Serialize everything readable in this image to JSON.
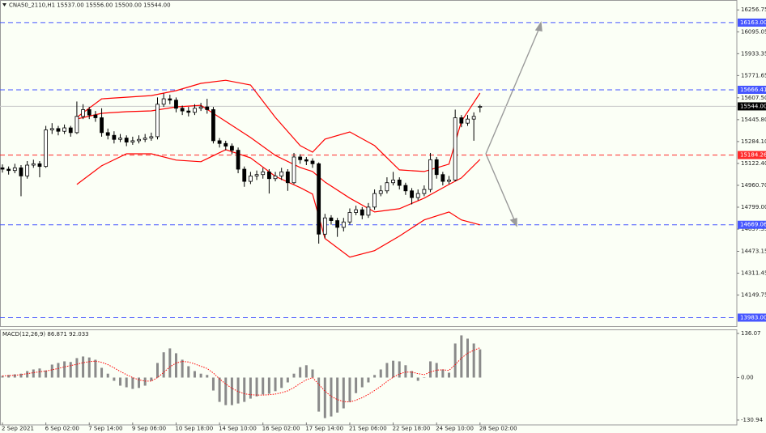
{
  "chart_data": [
    {
      "type": "candlestick",
      "title": "CNA50_2110,H1  15537.00 15556.00 15500.00 15544.00",
      "categories": [
        "2 Sep 2021",
        null,
        null,
        null,
        null,
        null,
        null,
        "6 Sep 02:00",
        null,
        null,
        null,
        null,
        null,
        null,
        "7 Sep 14:00",
        null,
        null,
        null,
        null,
        null,
        null,
        "9 Sep 06:00",
        null,
        null,
        null,
        null,
        null,
        null,
        "10 Sep 18:00",
        null,
        null,
        null,
        null,
        null,
        null,
        "14 Sep 10:00",
        null,
        null,
        null,
        null,
        null,
        null,
        "16 Sep 02:00",
        null,
        null,
        null,
        null,
        null,
        null,
        "17 Sep 14:00",
        null,
        null,
        null,
        null,
        null,
        null,
        "21 Sep 06:00",
        null,
        null,
        null,
        null,
        null,
        null,
        "22 Sep 18:00",
        null,
        null,
        null,
        null,
        null,
        null,
        "24 Sep 10:00",
        null,
        null,
        null,
        null,
        null,
        null,
        "28 Sep 02:00"
      ],
      "open": [
        15090,
        15080,
        15070,
        15090,
        15030,
        15110,
        15120,
        15100,
        15370,
        15380,
        15360,
        15385,
        15350,
        15470,
        15520,
        15480,
        15460,
        15350,
        15330,
        15300,
        15310,
        15280,
        15290,
        15300,
        15310,
        15320,
        15560,
        15600,
        15590,
        15530,
        15510,
        15500,
        15530,
        15540,
        15520,
        15290,
        15270,
        15250,
        15220,
        15080,
        14990,
        15030,
        15040,
        15060,
        15010,
        15030,
        15060,
        14980,
        15170,
        15150,
        15140,
        15120,
        14600,
        14720,
        14700,
        14650,
        14690,
        14760,
        14780,
        14740,
        14800,
        14900,
        14920,
        14980,
        15000,
        14960,
        14920,
        14870,
        14900,
        14930,
        15150,
        15040,
        14990,
        15000,
        15460,
        15420,
        15450,
        15537
      ],
      "high": [
        15115,
        15100,
        15120,
        15110,
        15140,
        15150,
        15140,
        15400,
        15420,
        15400,
        15410,
        15400,
        15580,
        15560,
        15540,
        15510,
        15530,
        15380,
        15360,
        15340,
        15330,
        15320,
        15330,
        15340,
        15350,
        15610,
        15640,
        15630,
        15610,
        15550,
        15540,
        15560,
        15570,
        15600,
        15540,
        15310,
        15290,
        15270,
        15240,
        15100,
        15060,
        15070,
        15090,
        15080,
        15060,
        15090,
        15080,
        15200,
        15190,
        15170,
        15160,
        15130,
        14750,
        14740,
        14720,
        14720,
        14790,
        14810,
        14800,
        14830,
        14930,
        14960,
        15020,
        15060,
        15020,
        14980,
        14940,
        14930,
        14960,
        15200,
        15170,
        15060,
        15030,
        15520,
        15480,
        15480,
        15500,
        15556
      ],
      "low": [
        15055,
        15040,
        15050,
        14880,
        15010,
        15090,
        15020,
        15090,
        15340,
        15330,
        15340,
        15320,
        15340,
        15450,
        15450,
        15430,
        15320,
        15300,
        15270,
        15280,
        15250,
        15260,
        15270,
        15280,
        15290,
        15300,
        15540,
        15560,
        15500,
        15480,
        15470,
        15480,
        15510,
        15490,
        15270,
        15240,
        15220,
        15190,
        15050,
        14950,
        14970,
        15000,
        15010,
        14900,
        14990,
        15000,
        14920,
        14970,
        15120,
        15110,
        15090,
        14530,
        14570,
        14670,
        14580,
        14620,
        14670,
        14740,
        14710,
        14720,
        14780,
        14880,
        14900,
        14960,
        14930,
        14890,
        14820,
        14850,
        14880,
        14910,
        15010,
        14960,
        14970,
        14990,
        15390,
        15400,
        15290,
        15500
      ],
      "close": [
        15080,
        15070,
        15090,
        15030,
        15110,
        15120,
        15100,
        15370,
        15380,
        15360,
        15385,
        15350,
        15470,
        15520,
        15480,
        15460,
        15350,
        15330,
        15300,
        15310,
        15280,
        15290,
        15300,
        15310,
        15320,
        15560,
        15600,
        15590,
        15530,
        15510,
        15500,
        15530,
        15540,
        15520,
        15290,
        15270,
        15250,
        15220,
        15080,
        14990,
        15030,
        15040,
        15060,
        15010,
        15030,
        15060,
        14980,
        15170,
        15150,
        15140,
        15120,
        14600,
        14720,
        14700,
        14650,
        14690,
        14760,
        14780,
        14740,
        14800,
        14900,
        14920,
        14980,
        15000,
        14960,
        14920,
        14870,
        14900,
        14930,
        15150,
        15040,
        14990,
        15000,
        15460,
        15420,
        15450,
        15470,
        15544
      ],
      "up_color": "#ffffff",
      "down_color": "#000000",
      "wick_color": "#000000",
      "bands": [
        {
          "color": "#ff0000",
          "x": [
            12,
            16,
            20,
            24,
            28,
            32,
            36,
            40,
            44,
            48,
            50,
            52,
            56,
            60,
            64,
            68,
            72,
            74,
            77
          ],
          "values": [
            15463,
            15600,
            15612,
            15624,
            15660,
            15714,
            15737,
            15702,
            15463,
            15254,
            15206,
            15302,
            15355,
            15254,
            15075,
            15063,
            15117,
            15433,
            15642
          ]
        },
        {
          "color": "#ff0000",
          "x": [
            12,
            16,
            20,
            24,
            28,
            32,
            36,
            40,
            44,
            48,
            50,
            52,
            56,
            60,
            64,
            68,
            72,
            74,
            77
          ],
          "values": [
            15451,
            15493,
            15505,
            15511,
            15540,
            15552,
            15433,
            15314,
            15182,
            15093,
            15063,
            14985,
            14866,
            14764,
            14788,
            14866,
            14967,
            15015,
            15152
          ]
        },
        {
          "color": "#ff0000",
          "x": [
            12,
            16,
            20,
            24,
            28,
            32,
            36,
            40,
            44,
            48,
            50,
            52,
            56,
            60,
            64,
            68,
            72,
            74,
            77
          ],
          "values": [
            14967,
            15105,
            15194,
            15194,
            15147,
            15135,
            15224,
            15164,
            15027,
            14944,
            14896,
            14568,
            14430,
            14478,
            14585,
            14705,
            14764,
            14705,
            14669
          ]
        }
      ],
      "levels": [
        {
          "value": 16163,
          "label": "16163.00",
          "color": "#4656ff",
          "line_color": "#4656ff",
          "style": "dash"
        },
        {
          "value": 15666.41,
          "label": "15666.41",
          "color": "#4656ff",
          "line_color": "#4656ff",
          "style": "dash"
        },
        {
          "value": 15544,
          "label": "15544.00",
          "color": "#000000",
          "line_color": "#c8c8c8",
          "style": "solid"
        },
        {
          "value": 15184.26,
          "label": "15184.26",
          "color": "#ff2a2a",
          "line_color": "#ff2a2a",
          "style": "dash"
        },
        {
          "value": 14669.06,
          "label": "14669.06",
          "color": "#4656ff",
          "line_color": "#4656ff",
          "style": "dash"
        },
        {
          "value": 13983,
          "label": "13983.00",
          "color": "#4656ff",
          "line_color": "#4656ff",
          "style": "dash"
        }
      ],
      "ylim": [
        13920,
        16330
      ],
      "yticks": [
        16256.75,
        16095.05,
        15933.35,
        15771.65,
        {
          "value": 15607.5,
          "label": "15607.50"
        },
        {
          "value": 15445.8,
          "label": "15445.80"
        },
        {
          "value": 15284.1,
          "label": "15284.10"
        },
        {
          "value": 15122.4,
          "label": "15122.40"
        },
        {
          "value": 14960.7,
          "label": "14960.70"
        },
        {
          "value": 14799,
          "label": "14799.00"
        },
        14637.35,
        14473.15,
        14311.45,
        14149.75
      ]
    },
    {
      "type": "macd",
      "title": "MACD(12,26,9) 86.871 92.033",
      "histogram": [
        5,
        8,
        10,
        12,
        20,
        25,
        28,
        22,
        40,
        45,
        50,
        48,
        60,
        65,
        62,
        55,
        30,
        12,
        -10,
        -25,
        -30,
        -35,
        -32,
        -25,
        -10,
        45,
        78,
        90,
        75,
        55,
        35,
        20,
        12,
        8,
        -40,
        -75,
        -85,
        -85,
        -80,
        -75,
        -65,
        -58,
        -52,
        -50,
        -42,
        -32,
        -15,
        12,
        32,
        38,
        25,
        -105,
        -125,
        -120,
        -108,
        -95,
        -75,
        -48,
        -30,
        -15,
        8,
        25,
        45,
        52,
        50,
        38,
        20,
        -10,
        0,
        50,
        45,
        25,
        15,
        105,
        130,
        120,
        105,
        87
      ],
      "signal": [
        5,
        6,
        7,
        9,
        12,
        15,
        18,
        20,
        24,
        28,
        33,
        37,
        41,
        46,
        49,
        51,
        47,
        40,
        30,
        19,
        9,
        0,
        -7,
        -11,
        -11,
        0,
        16,
        33,
        45,
        50,
        48,
        42,
        35,
        28,
        14,
        -4,
        -20,
        -33,
        -43,
        -50,
        -53,
        -54,
        -54,
        -53,
        -51,
        -47,
        -41,
        -31,
        -18,
        -7,
        0,
        -21,
        -42,
        -58,
        -68,
        -74,
        -75,
        -70,
        -62,
        -52,
        -40,
        -27,
        -12,
        1,
        11,
        17,
        17,
        12,
        9,
        17,
        23,
        24,
        22,
        40,
        60,
        75,
        84,
        92
      ],
      "histogram_color": "#8a8a8a",
      "signal_color": "#ff0000",
      "ylim": [
        -146,
        146
      ],
      "yticks": [
        136.07,
        {
          "value": 0,
          "label": "0.00"
        },
        -130.94
      ]
    }
  ]
}
